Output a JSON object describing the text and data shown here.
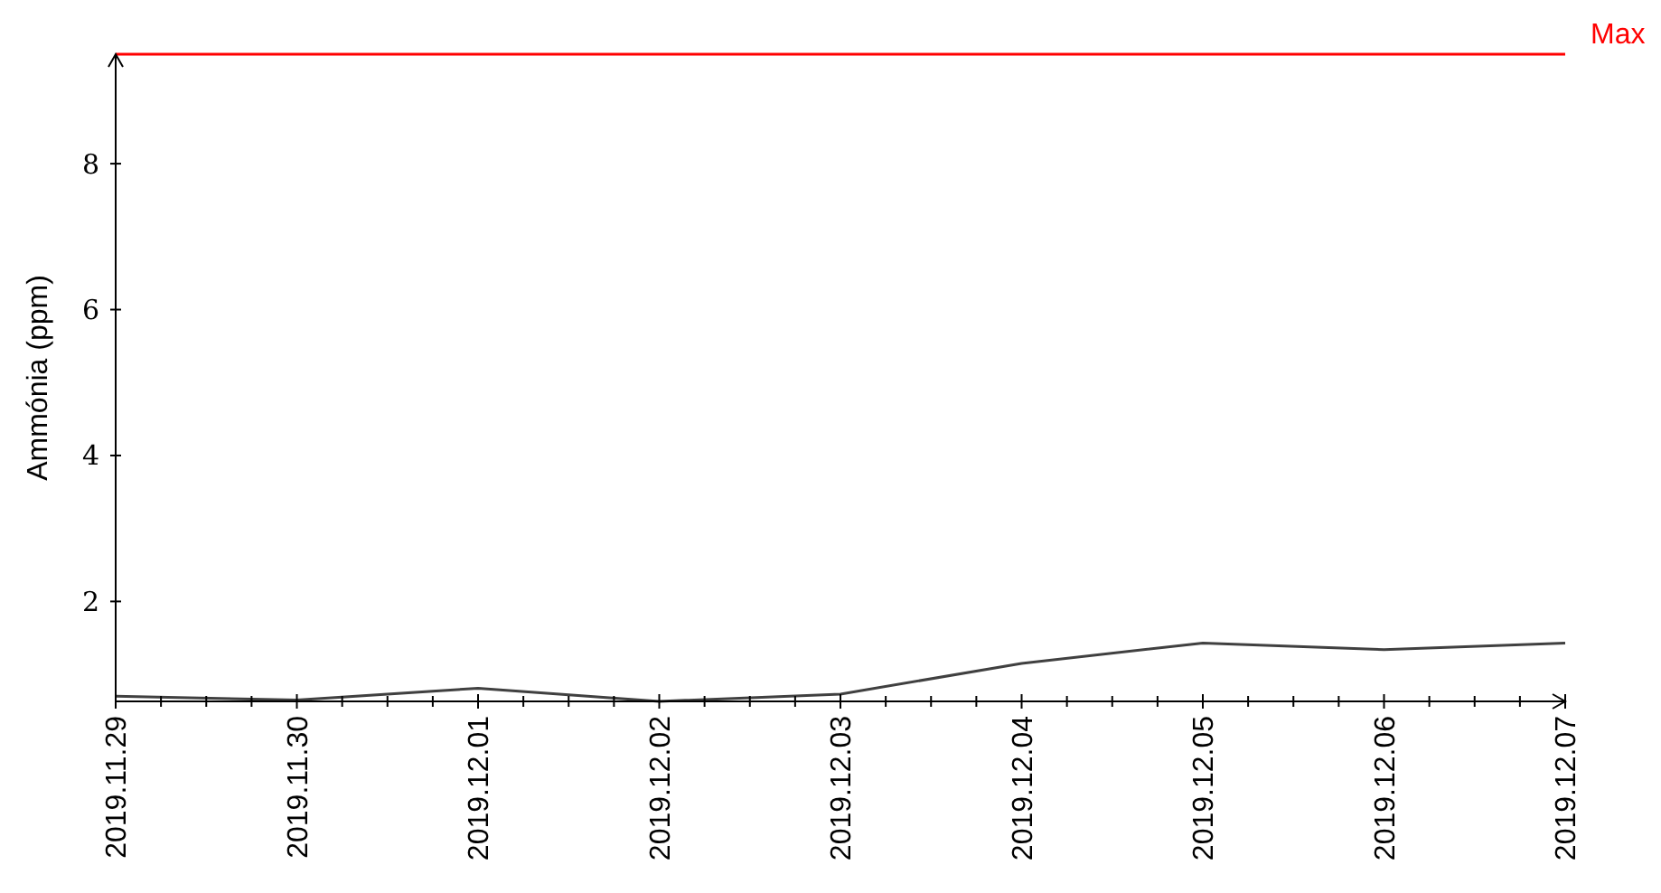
{
  "chart_data": {
    "type": "line",
    "ylabel": "Ammónia (ppm)",
    "categories": [
      "2019.11.29",
      "2019.11.30",
      "2019.12.01",
      "2019.12.02",
      "2019.12.03",
      "2019.12.04",
      "2019.12.05",
      "2019.12.06",
      "2019.12.07"
    ],
    "series": [
      {
        "color": "#404040",
        "values": [
          0.7,
          0.65,
          0.81,
          0.63,
          0.73,
          1.15,
          1.43,
          1.34,
          1.43
        ]
      }
    ],
    "ylim": [
      0.63,
      9.5
    ],
    "yticks": [
      2,
      4,
      6,
      8
    ],
    "ref_lines": [
      {
        "axis": "y",
        "value": 9.5,
        "label": "Max",
        "color": "#ff0000"
      }
    ],
    "grid": false
  }
}
